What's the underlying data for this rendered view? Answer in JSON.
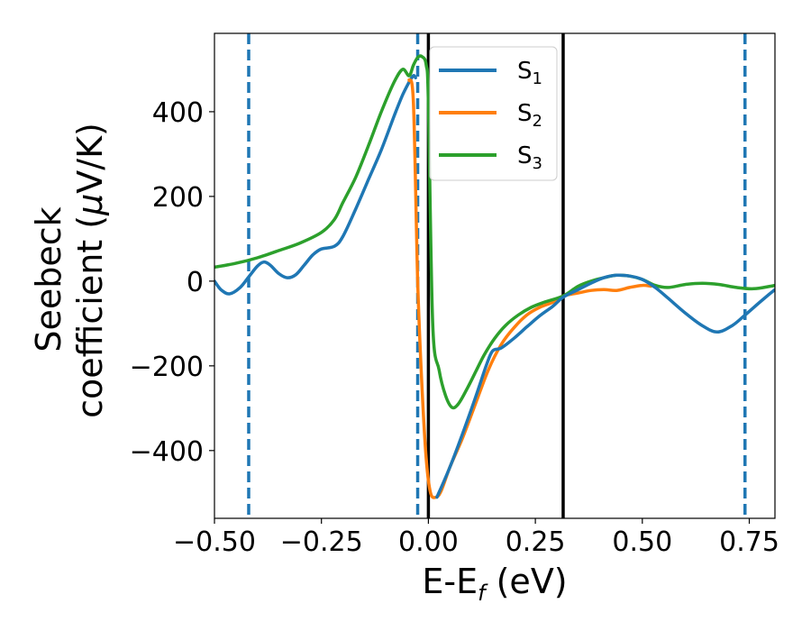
{
  "chart_data": {
    "type": "line",
    "xlabel": {
      "main": "E-E",
      "sub": "f",
      "unit": " (eV)"
    },
    "ylabel": {
      "line1": "Seebeck",
      "line2": "coefficient  (",
      "mu": "μ",
      "unit": "V/K)"
    },
    "xlim": [
      -0.5,
      0.81
    ],
    "ylim": [
      -560,
      585
    ],
    "xticks": [
      -0.5,
      -0.25,
      0.0,
      0.25,
      0.5,
      0.75
    ],
    "xtick_labels": [
      "−0.50",
      "−0.25",
      "0.00",
      "0.25",
      "0.50",
      "0.75"
    ],
    "yticks": [
      -400,
      -200,
      0,
      200,
      400
    ],
    "ytick_labels": [
      "−400",
      "−200",
      "0",
      "200",
      "400"
    ],
    "legend_position": "top-right (inside)",
    "vertical_lines": [
      {
        "x": -0.42,
        "style": "dashed",
        "color": "#1f77b4"
      },
      {
        "x": -0.025,
        "style": "dashed",
        "color": "#1f77b4"
      },
      {
        "x": 0.74,
        "style": "dashed",
        "color": "#1f77b4"
      },
      {
        "x": 0.0,
        "style": "solid",
        "color": "#000000"
      },
      {
        "x": 0.315,
        "style": "solid",
        "color": "#000000"
      }
    ],
    "series": [
      {
        "name": "S",
        "sub": "1",
        "color": "#1f77b4",
        "points": [
          [
            -0.5,
            0
          ],
          [
            -0.485,
            -20
          ],
          [
            -0.465,
            -30
          ],
          [
            -0.44,
            -15
          ],
          [
            -0.42,
            10
          ],
          [
            -0.4,
            35
          ],
          [
            -0.385,
            45
          ],
          [
            -0.37,
            38
          ],
          [
            -0.35,
            18
          ],
          [
            -0.33,
            8
          ],
          [
            -0.31,
            15
          ],
          [
            -0.29,
            38
          ],
          [
            -0.27,
            62
          ],
          [
            -0.25,
            76
          ],
          [
            -0.22,
            82
          ],
          [
            -0.2,
            105
          ],
          [
            -0.17,
            170
          ],
          [
            -0.14,
            240
          ],
          [
            -0.11,
            310
          ],
          [
            -0.08,
            390
          ],
          [
            -0.06,
            440
          ],
          [
            -0.045,
            470
          ],
          [
            -0.035,
            485
          ],
          [
            -0.03,
            480
          ]
        ]
      },
      {
        "name": "S",
        "sub": "2",
        "color": "#ff7f0e",
        "points": [
          [
            -0.045,
            475
          ],
          [
            -0.035,
            420
          ],
          [
            -0.025,
            0
          ],
          [
            -0.015,
            -250
          ],
          [
            -0.005,
            -420
          ],
          [
            0.005,
            -500
          ],
          [
            0.018,
            -510
          ],
          [
            0.03,
            -495
          ],
          [
            0.05,
            -440
          ],
          [
            0.08,
            -370
          ],
          [
            0.11,
            -290
          ],
          [
            0.14,
            -210
          ],
          [
            0.17,
            -150
          ],
          [
            0.2,
            -110
          ],
          [
            0.23,
            -80
          ],
          [
            0.26,
            -62
          ],
          [
            0.29,
            -50
          ],
          [
            0.315,
            -35
          ],
          [
            0.35,
            -28
          ],
          [
            0.38,
            -22
          ],
          [
            0.41,
            -20
          ],
          [
            0.44,
            -22
          ],
          [
            0.47,
            -15
          ],
          [
            0.5,
            -10
          ],
          [
            0.52,
            -12
          ]
        ]
      },
      {
        "name": "S",
        "sub": "3",
        "color": "#2ca02c",
        "points": [
          [
            -0.5,
            33
          ],
          [
            -0.45,
            42
          ],
          [
            -0.4,
            55
          ],
          [
            -0.35,
            72
          ],
          [
            -0.3,
            90
          ],
          [
            -0.25,
            115
          ],
          [
            -0.22,
            145
          ],
          [
            -0.2,
            185
          ],
          [
            -0.17,
            245
          ],
          [
            -0.14,
            320
          ],
          [
            -0.11,
            400
          ],
          [
            -0.08,
            470
          ],
          [
            -0.06,
            500
          ],
          [
            -0.045,
            485
          ],
          [
            -0.035,
            510
          ],
          [
            -0.025,
            528
          ],
          [
            -0.015,
            530
          ],
          [
            -0.005,
            510
          ],
          [
            0.0,
            420
          ],
          [
            0.01,
            -100
          ],
          [
            0.025,
            -210
          ],
          [
            0.04,
            -270
          ],
          [
            0.055,
            -298
          ],
          [
            0.07,
            -290
          ],
          [
            0.09,
            -255
          ],
          [
            0.11,
            -215
          ],
          [
            0.13,
            -175
          ],
          [
            0.155,
            -135
          ],
          [
            0.18,
            -105
          ],
          [
            0.21,
            -80
          ],
          [
            0.24,
            -62
          ],
          [
            0.27,
            -50
          ],
          [
            0.315,
            -35
          ],
          [
            0.35,
            -12
          ],
          [
            0.38,
            0
          ],
          [
            0.41,
            8
          ],
          [
            0.44,
            14
          ],
          [
            0.47,
            12
          ],
          [
            0.5,
            4
          ],
          [
            0.53,
            -10
          ],
          [
            0.56,
            -15
          ],
          [
            0.6,
            -8
          ],
          [
            0.64,
            -5
          ],
          [
            0.68,
            -8
          ],
          [
            0.72,
            -15
          ],
          [
            0.76,
            -18
          ],
          [
            0.8,
            -12
          ],
          [
            0.81,
            -10
          ]
        ]
      },
      {
        "name": "S",
        "sub": "1",
        "color": "#1f77b4",
        "legend": false,
        "points": [
          [
            0.02,
            -510
          ],
          [
            0.05,
            -440
          ],
          [
            0.08,
            -360
          ],
          [
            0.11,
            -275
          ],
          [
            0.135,
            -200
          ],
          [
            0.15,
            -165
          ],
          [
            0.17,
            -158
          ],
          [
            0.2,
            -135
          ],
          [
            0.23,
            -108
          ],
          [
            0.26,
            -82
          ],
          [
            0.29,
            -60
          ],
          [
            0.315,
            -38
          ],
          [
            0.35,
            -20
          ],
          [
            0.38,
            -5
          ],
          [
            0.41,
            8
          ],
          [
            0.44,
            14
          ],
          [
            0.47,
            12
          ],
          [
            0.5,
            4
          ],
          [
            0.53,
            -15
          ],
          [
            0.56,
            -40
          ],
          [
            0.6,
            -75
          ],
          [
            0.64,
            -105
          ],
          [
            0.675,
            -120
          ],
          [
            0.71,
            -105
          ],
          [
            0.74,
            -80
          ],
          [
            0.78,
            -45
          ],
          [
            0.81,
            -20
          ]
        ]
      }
    ],
    "legend": [
      {
        "name": "S",
        "sub": "1",
        "color": "#1f77b4"
      },
      {
        "name": "S",
        "sub": "2",
        "color": "#ff7f0e"
      },
      {
        "name": "S",
        "sub": "3",
        "color": "#2ca02c"
      }
    ]
  }
}
